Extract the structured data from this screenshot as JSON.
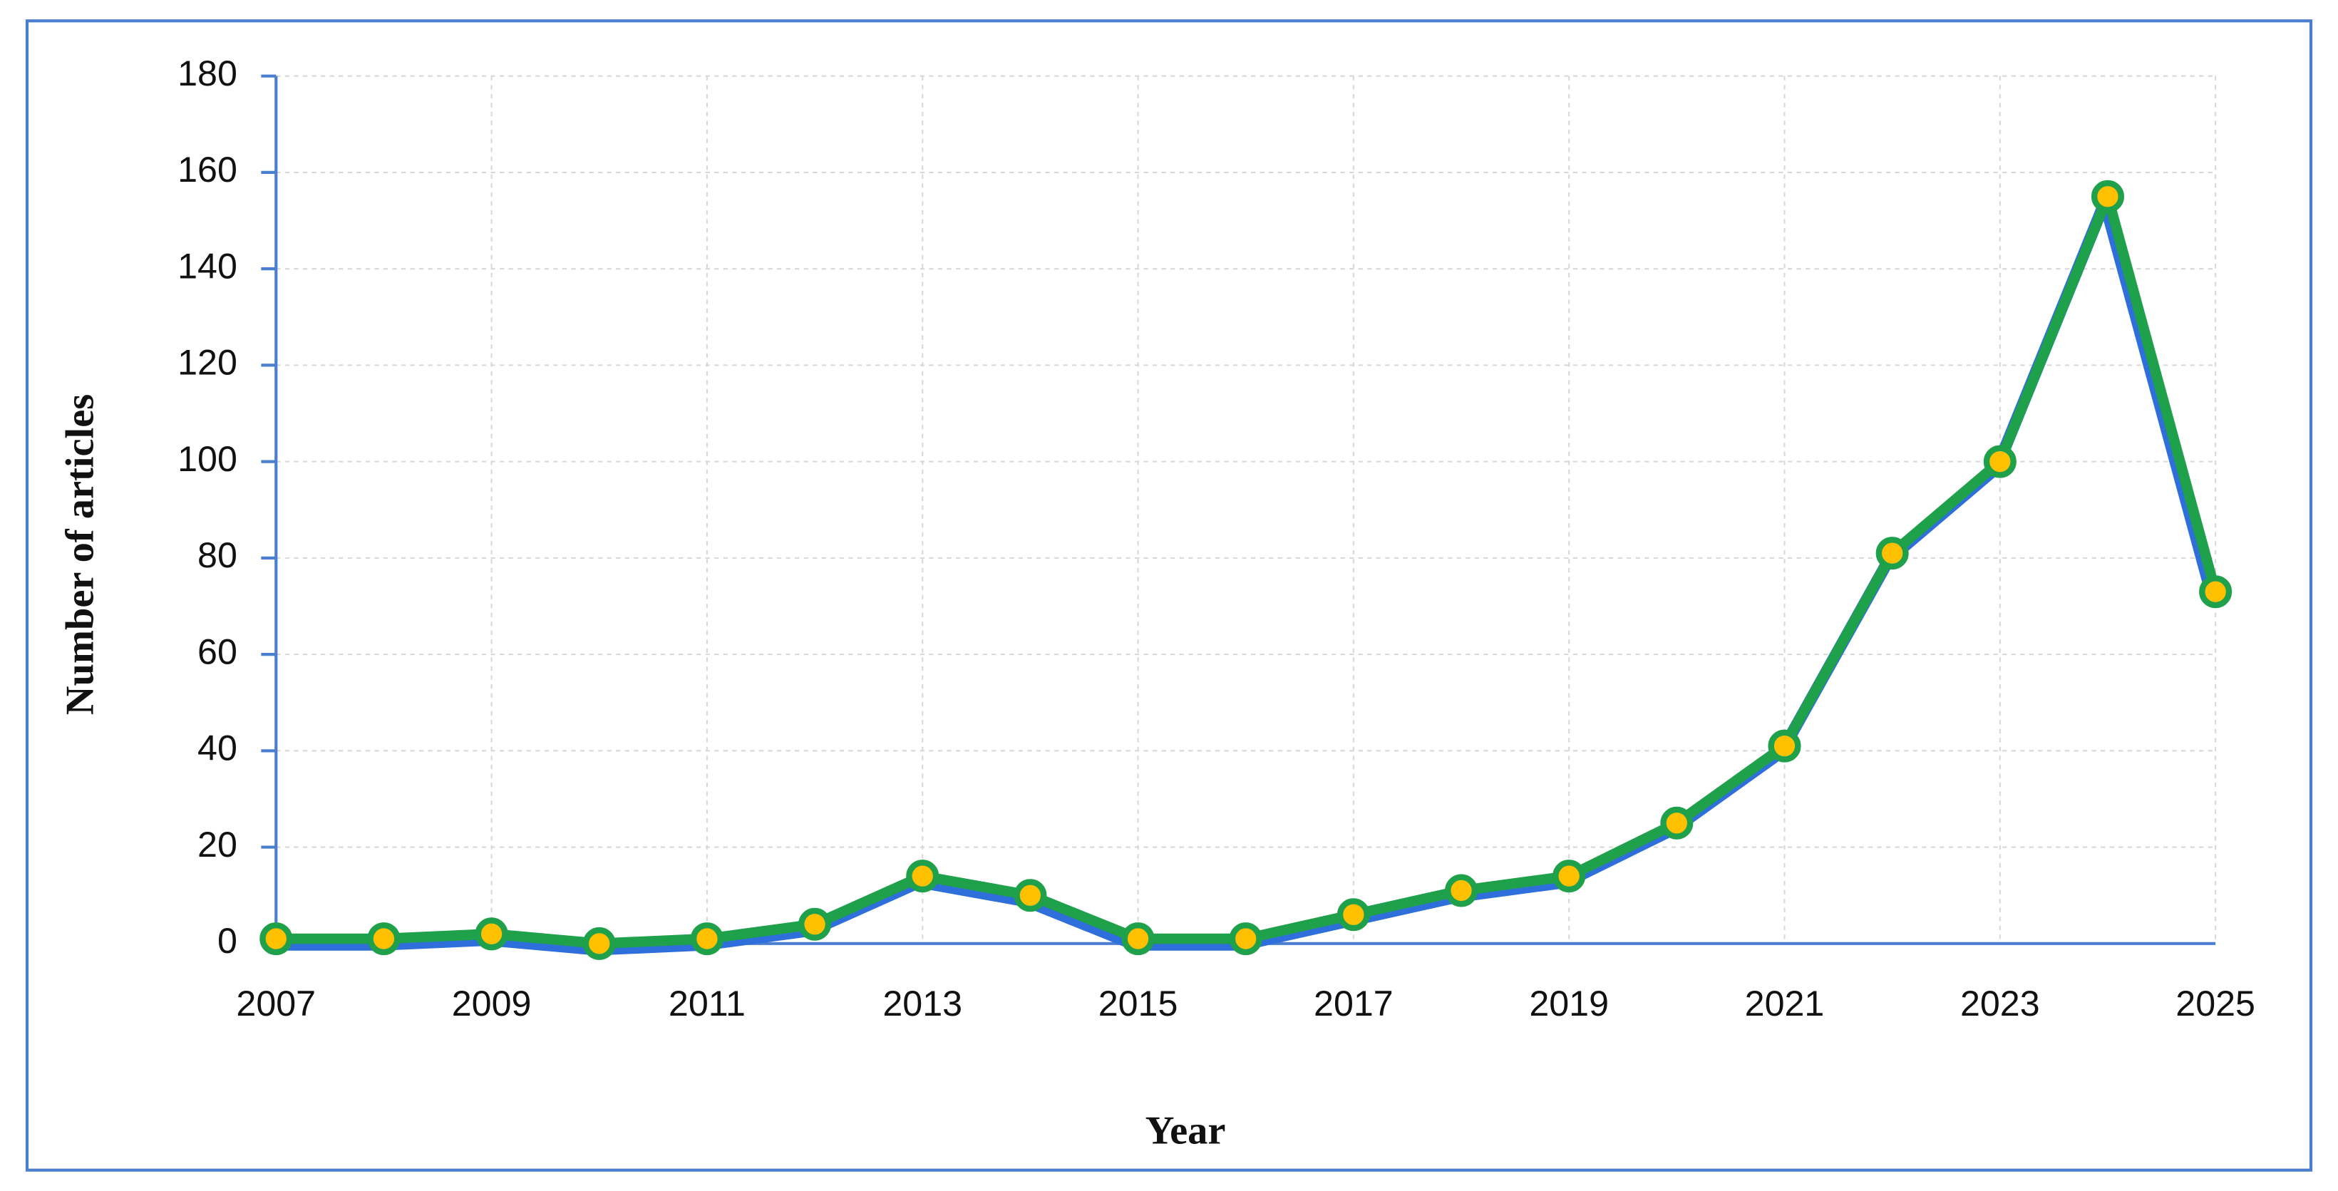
{
  "chart_data": {
    "type": "line",
    "x_label": "Year",
    "y_label": "Number of articles",
    "x": [
      2007,
      2008,
      2009,
      2010,
      2011,
      2012,
      2013,
      2014,
      2015,
      2016,
      2017,
      2018,
      2019,
      2020,
      2021,
      2022,
      2023,
      2024,
      2025
    ],
    "series": [
      {
        "color": "#1fa04a",
        "values": [
          1,
          1,
          2,
          0,
          1,
          4,
          14,
          10,
          1,
          1,
          6,
          11,
          14,
          25,
          41,
          81,
          100,
          155,
          73
        ]
      }
    ],
    "xlim": [
      2007,
      2025
    ],
    "xticks": [
      2007,
      2009,
      2011,
      2013,
      2015,
      2017,
      2019,
      2021,
      2023,
      2025
    ],
    "ylim": [
      0,
      180
    ],
    "yticks": [
      0,
      20,
      40,
      60,
      80,
      100,
      120,
      140,
      160,
      180
    ],
    "grid": true,
    "marker_color": "#ffc000",
    "shadow_color": "#2e6fdc"
  }
}
